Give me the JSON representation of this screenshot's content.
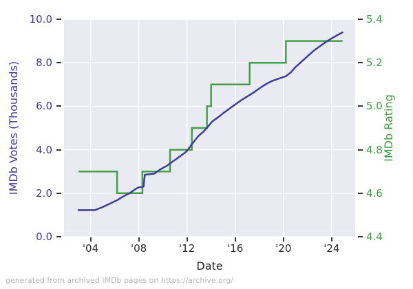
{
  "figure": {
    "caption": "generated from archived IMDb pages on https://archive.org/"
  },
  "chart_data": {
    "type": "line",
    "title": "",
    "xlabel": "Date",
    "grid": true,
    "legend": "none",
    "plot_bg_color": "#eaeaf2",
    "grid_color": "#ffffff",
    "tick_mark_color": "#333333",
    "x_axis": {
      "lim": [
        2001.8,
        2025.95
      ],
      "tick_years": [
        2004,
        2008,
        2012,
        2016,
        2020,
        2024
      ],
      "tick_labels": [
        "'04",
        "'08",
        "'12",
        "'16",
        "'20",
        "'24"
      ],
      "label": "Date",
      "label_color": "#262626"
    },
    "left_axis": {
      "label": "IMDb Votes (Thousands)",
      "color": "#3b3b8e",
      "lim": [
        0,
        10
      ],
      "ticks": [
        0,
        2,
        4,
        6,
        8,
        10
      ],
      "tick_labels": [
        "0.0",
        "2.0",
        "4.0",
        "6.0",
        "8.0",
        "10.0"
      ]
    },
    "right_axis": {
      "label": "IMDb Rating",
      "color": "#3f9b42",
      "lim": [
        4.4,
        5.4
      ],
      "ticks": [
        4.4,
        4.6,
        4.8,
        5.0,
        5.2,
        5.4
      ],
      "tick_labels": [
        "4.4",
        "4.6",
        "4.8",
        "5.0",
        "5.2",
        "5.4"
      ]
    },
    "series": [
      {
        "name": "IMDb Votes (Thousands)",
        "axis": "left",
        "style": "line",
        "color": "#3d3d91",
        "points": [
          [
            2003.0,
            1.22
          ],
          [
            2004.35,
            1.22
          ],
          [
            2005.0,
            1.36
          ],
          [
            2005.6,
            1.52
          ],
          [
            2006.2,
            1.68
          ],
          [
            2006.8,
            1.88
          ],
          [
            2007.3,
            2.02
          ],
          [
            2007.75,
            2.2
          ],
          [
            2008.0,
            2.27
          ],
          [
            2008.4,
            2.3
          ],
          [
            2008.5,
            2.85
          ],
          [
            2009.3,
            2.9
          ],
          [
            2009.8,
            3.1
          ],
          [
            2010.3,
            3.25
          ],
          [
            2010.8,
            3.45
          ],
          [
            2011.3,
            3.65
          ],
          [
            2011.8,
            3.85
          ],
          [
            2012.0,
            3.95
          ],
          [
            2012.4,
            4.25
          ],
          [
            2012.9,
            4.6
          ],
          [
            2013.4,
            4.85
          ],
          [
            2013.8,
            5.1
          ],
          [
            2014.1,
            5.3
          ],
          [
            2014.6,
            5.5
          ],
          [
            2015.1,
            5.72
          ],
          [
            2015.6,
            5.92
          ],
          [
            2016.0,
            6.08
          ],
          [
            2016.5,
            6.28
          ],
          [
            2017.0,
            6.45
          ],
          [
            2017.5,
            6.62
          ],
          [
            2018.0,
            6.82
          ],
          [
            2018.5,
            7.0
          ],
          [
            2019.0,
            7.15
          ],
          [
            2019.5,
            7.25
          ],
          [
            2020.2,
            7.38
          ],
          [
            2020.6,
            7.55
          ],
          [
            2021.0,
            7.8
          ],
          [
            2021.5,
            8.05
          ],
          [
            2022.0,
            8.3
          ],
          [
            2022.5,
            8.55
          ],
          [
            2023.0,
            8.75
          ],
          [
            2023.5,
            8.95
          ],
          [
            2024.0,
            9.12
          ],
          [
            2024.5,
            9.28
          ],
          [
            2024.9,
            9.4
          ]
        ]
      },
      {
        "name": "IMDb Rating",
        "axis": "right",
        "style": "step",
        "color": "#44a048",
        "segments": [
          {
            "from": 2003.0,
            "to": 2006.2,
            "value": 4.7
          },
          {
            "from": 2006.2,
            "to": 2008.3,
            "value": 4.6
          },
          {
            "from": 2008.3,
            "to": 2010.6,
            "value": 4.7
          },
          {
            "from": 2010.6,
            "to": 2012.4,
            "value": 4.8
          },
          {
            "from": 2012.4,
            "to": 2013.65,
            "value": 4.9
          },
          {
            "from": 2013.65,
            "to": 2014.0,
            "value": 5.0
          },
          {
            "from": 2014.0,
            "to": 2017.2,
            "value": 5.1
          },
          {
            "from": 2017.2,
            "to": 2020.2,
            "value": 5.2
          },
          {
            "from": 2020.2,
            "to": 2024.9,
            "value": 5.3
          }
        ]
      }
    ]
  }
}
